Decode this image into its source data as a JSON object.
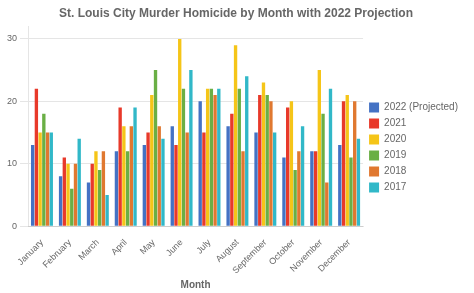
{
  "chart_data": {
    "type": "bar",
    "title": "St. Louis City Murder Homicide by Month with 2022 Projection",
    "x_label": "Month",
    "categories": [
      "January",
      "February",
      "March",
      "April",
      "May",
      "June",
      "July",
      "August",
      "September",
      "October",
      "November",
      "December"
    ],
    "series": [
      {
        "name": "2022 (Projected)",
        "color": "#4472C4",
        "values": [
          13,
          8,
          7,
          12,
          13,
          16,
          20,
          16,
          15,
          11,
          12,
          13
        ]
      },
      {
        "name": "2021",
        "color": "#E8392A",
        "values": [
          22,
          11,
          10,
          19,
          15,
          13,
          15,
          18,
          21,
          19,
          12,
          20
        ]
      },
      {
        "name": "2020",
        "color": "#F5C518",
        "values": [
          15,
          10,
          12,
          16,
          21,
          30,
          22,
          29,
          23,
          20,
          25,
          21
        ]
      },
      {
        "name": "2019",
        "color": "#6AAF45",
        "values": [
          18,
          6,
          9,
          12,
          25,
          22,
          22,
          22,
          21,
          9,
          18,
          11
        ]
      },
      {
        "name": "2018",
        "color": "#E07830",
        "values": [
          15,
          10,
          12,
          16,
          16,
          15,
          21,
          12,
          20,
          12,
          7,
          20
        ]
      },
      {
        "name": "2017",
        "color": "#31B8C8",
        "values": [
          15,
          14,
          5,
          19,
          14,
          25,
          22,
          24,
          15,
          16,
          22,
          14
        ]
      }
    ],
    "ylim": [
      0,
      32
    ],
    "yticks": [
      0,
      10,
      20,
      30
    ],
    "grid": true,
    "legend": "right"
  }
}
